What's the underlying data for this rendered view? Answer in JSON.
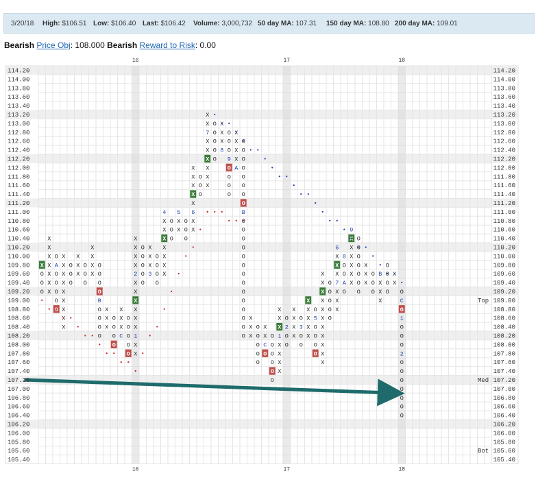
{
  "header": {
    "date": "3/20/18",
    "high_label": "High:",
    "high_value": "$106.51",
    "low_label": "Low:",
    "low_value": "$106.40",
    "last_label": "Last:",
    "last_value": "$106.42",
    "volume_label": "Volume:",
    "volume_value": "3,000,732",
    "ma50_label": "50 day MA:",
    "ma50_value": "107.31",
    "ma150_label": "150 day MA:",
    "ma150_value": "108.80",
    "ma200_label": "200 day MA:",
    "ma200_value": "109.01"
  },
  "signals": {
    "trend1": "Bearish",
    "price_obj_link": "Price Obj",
    "price_obj_value": ": 108.000",
    "trend2": "Bearish",
    "reward_risk_link": "Reward to Risk",
    "reward_risk_value": ": 0.00"
  },
  "colors": {
    "x_text": "#222222",
    "o_text": "#222222",
    "green_box": "#3a7d3a",
    "red_box": "#c0504d",
    "blue_text": "#1f3fa8",
    "red_dot": "#cc2222",
    "trend_arrow": "#1f6b6b",
    "grid_line": "#e6e6e6",
    "band_shade": "#efefef",
    "year_shade": "#d9d9d9"
  },
  "chart_data": {
    "type": "point-and-figure",
    "box_size": 0.2,
    "ylim": [
      105.4,
      114.2
    ],
    "y_ticks": [
      "114.20",
      "114.00",
      "113.80",
      "113.60",
      "113.40",
      "113.20",
      "113.00",
      "112.80",
      "112.60",
      "112.40",
      "112.20",
      "112.00",
      "111.80",
      "111.60",
      "111.40",
      "111.20",
      "111.00",
      "110.80",
      "110.60",
      "110.40",
      "110.20",
      "110.00",
      "109.80",
      "109.60",
      "109.40",
      "109.20",
      "109.00",
      "108.80",
      "108.60",
      "108.40",
      "108.20",
      "108.00",
      "107.80",
      "107.60",
      "107.40",
      "107.20",
      "107.00",
      "106.80",
      "106.60",
      "106.40",
      "106.20",
      "106.00",
      "105.80",
      "105.60",
      "105.40"
    ],
    "year_markers": [
      {
        "label": "16",
        "col": 13
      },
      {
        "label": "17",
        "col": 34
      },
      {
        "label": "18",
        "col": 50
      }
    ],
    "range_labels": [
      {
        "label": "Top",
        "value": 109.0
      },
      {
        "label": "Med",
        "value": 107.2
      },
      {
        "label": "Bot",
        "value": 105.6
      }
    ],
    "columns": [
      {
        "col": 0,
        "type": "O",
        "top": 109.8,
        "bottom": 109.2
      },
      {
        "col": 1,
        "type": "X",
        "top": 110.4,
        "bottom": 109.2
      },
      {
        "col": 2,
        "type": "O",
        "top": 110.0,
        "bottom": 108.8
      },
      {
        "col": 3,
        "type": "X",
        "top": 110.0,
        "bottom": 108.4
      },
      {
        "col": 4,
        "type": "O",
        "top": 109.8,
        "bottom": 109.4
      },
      {
        "col": 5,
        "type": "X",
        "top": 110.0,
        "bottom": 109.6
      },
      {
        "col": 6,
        "type": "O",
        "top": 109.8,
        "bottom": 109.4
      },
      {
        "col": 7,
        "type": "X",
        "top": 110.2,
        "bottom": 109.6
      },
      {
        "col": 8,
        "type": "O",
        "top": 109.8,
        "bottom": 108.2
      },
      {
        "col": 9,
        "type": "X",
        "top": 108.8,
        "bottom": 108.4
      },
      {
        "col": 10,
        "type": "O",
        "top": 108.6,
        "bottom": 108.0
      },
      {
        "col": 11,
        "type": "X",
        "top": 108.8,
        "bottom": 108.2
      },
      {
        "col": 12,
        "type": "O",
        "top": 108.6,
        "bottom": 107.8
      },
      {
        "col": 13,
        "type": "X",
        "top": 110.4,
        "bottom": 107.8
      },
      {
        "col": 14,
        "type": "O",
        "top": 110.2,
        "bottom": 109.4
      },
      {
        "col": 15,
        "type": "X",
        "top": 110.2,
        "bottom": 109.6
      },
      {
        "col": 16,
        "type": "O",
        "top": 110.0,
        "bottom": 109.4
      },
      {
        "col": 17,
        "type": "X",
        "top": 111.0,
        "bottom": 109.6
      },
      {
        "col": 18,
        "type": "O",
        "top": 110.8,
        "bottom": 110.4
      },
      {
        "col": 19,
        "type": "X",
        "top": 111.0,
        "bottom": 110.6
      },
      {
        "col": 20,
        "type": "O",
        "top": 110.8,
        "bottom": 110.4
      },
      {
        "col": 21,
        "type": "X",
        "top": 112.0,
        "bottom": 110.6
      },
      {
        "col": 22,
        "type": "O",
        "top": 111.8,
        "bottom": 111.4
      },
      {
        "col": 23,
        "type": "X",
        "top": 113.2,
        "bottom": 111.6
      },
      {
        "col": 24,
        "type": "O",
        "top": 113.0,
        "bottom": 112.2
      },
      {
        "col": 25,
        "type": "X",
        "top": 113.0,
        "bottom": 112.4
      },
      {
        "col": 26,
        "type": "O",
        "top": 112.8,
        "bottom": 111.4
      },
      {
        "col": 27,
        "type": "X",
        "top": 112.8,
        "bottom": 112.0
      },
      {
        "col": 28,
        "type": "O",
        "top": 112.6,
        "bottom": 108.2
      },
      {
        "col": 29,
        "type": "X",
        "top": 108.6,
        "bottom": 108.2
      },
      {
        "col": 30,
        "type": "O",
        "top": 108.4,
        "bottom": 107.6
      },
      {
        "col": 31,
        "type": "X",
        "top": 108.4,
        "bottom": 107.8
      },
      {
        "col": 32,
        "type": "O",
        "top": 108.2,
        "bottom": 107.2
      },
      {
        "col": 33,
        "type": "X",
        "top": 108.8,
        "bottom": 107.4
      },
      {
        "col": 34,
        "type": "O",
        "top": 108.6,
        "bottom": 108.0
      },
      {
        "col": 35,
        "type": "X",
        "top": 108.8,
        "bottom": 108.2
      },
      {
        "col": 36,
        "type": "O",
        "top": 108.6,
        "bottom": 108.0
      },
      {
        "col": 37,
        "type": "X",
        "top": 109.0,
        "bottom": 108.2
      },
      {
        "col": 38,
        "type": "O",
        "top": 108.8,
        "bottom": 107.8
      },
      {
        "col": 39,
        "type": "X",
        "top": 109.6,
        "bottom": 107.6
      },
      {
        "col": 40,
        "type": "O",
        "top": 109.4,
        "bottom": 108.6
      },
      {
        "col": 41,
        "type": "X",
        "top": 110.2,
        "bottom": 108.8
      },
      {
        "col": 42,
        "type": "O",
        "top": 110.0,
        "bottom": 109.2
      },
      {
        "col": 43,
        "type": "X",
        "top": 110.6,
        "bottom": 109.4
      },
      {
        "col": 44,
        "type": "O",
        "top": 110.4,
        "bottom": 109.2
      },
      {
        "col": 45,
        "type": "X",
        "top": 109.8,
        "bottom": 109.4
      },
      {
        "col": 46,
        "type": "O",
        "top": 109.6,
        "bottom": 109.2
      },
      {
        "col": 47,
        "type": "X",
        "top": 109.6,
        "bottom": 109.0
      },
      {
        "col": 48,
        "type": "O",
        "top": 109.8,
        "bottom": 109.2
      },
      {
        "col": 49,
        "type": "X",
        "top": 109.6,
        "bottom": 109.4
      },
      {
        "col": 50,
        "type": "O",
        "top": 109.2,
        "bottom": 106.4
      }
    ],
    "month_markers": [
      {
        "col": 0,
        "value": 109.8,
        "label": "X",
        "box": "green"
      },
      {
        "col": 2,
        "value": 109.8,
        "label": "A"
      },
      {
        "col": 2,
        "value": 108.8,
        "label": "9",
        "box": "red"
      },
      {
        "col": 8,
        "value": 109.2,
        "label": "O",
        "box": "red"
      },
      {
        "col": 8,
        "value": 109.0,
        "label": "B"
      },
      {
        "col": 10,
        "value": 108.0,
        "label": "O",
        "box": "red"
      },
      {
        "col": 11,
        "value": 108.2,
        "label": "C"
      },
      {
        "col": 12,
        "value": 107.8,
        "label": "O",
        "box": "red"
      },
      {
        "col": 13,
        "value": 109.0,
        "label": "X",
        "box": "green"
      },
      {
        "col": 13,
        "value": 109.6,
        "label": "2"
      },
      {
        "col": 13,
        "value": 108.2,
        "label": "1"
      },
      {
        "col": 15,
        "value": 109.6,
        "label": "3"
      },
      {
        "col": 17,
        "value": 110.4,
        "label": "X",
        "box": "green"
      },
      {
        "col": 17,
        "value": 111.0,
        "label": "4"
      },
      {
        "col": 19,
        "value": 111.0,
        "label": "5"
      },
      {
        "col": 19,
        "value": 111.2,
        "label": "X",
        "box": "green"
      },
      {
        "col": 21,
        "value": 111.0,
        "label": "6"
      },
      {
        "col": 21,
        "value": 111.4,
        "label": "X",
        "box": "green"
      },
      {
        "col": 23,
        "value": 112.2,
        "label": "X",
        "box": "green"
      },
      {
        "col": 23,
        "value": 112.8,
        "label": "7"
      },
      {
        "col": 25,
        "value": 112.4,
        "label": "8"
      },
      {
        "col": 26,
        "value": 112.0,
        "label": "O",
        "box": "red"
      },
      {
        "col": 26,
        "value": 112.2,
        "label": "9"
      },
      {
        "col": 27,
        "value": 112.0,
        "label": "A"
      },
      {
        "col": 28,
        "value": 111.2,
        "label": "O",
        "box": "red"
      },
      {
        "col": 28,
        "value": 111.0,
        "label": "B"
      },
      {
        "col": 31,
        "value": 108.0,
        "label": "C"
      },
      {
        "col": 31,
        "value": 107.8,
        "label": "O",
        "box": "red"
      },
      {
        "col": 32,
        "value": 107.4,
        "label": "O",
        "box": "red"
      },
      {
        "col": 33,
        "value": 108.4,
        "label": "X",
        "box": "green"
      },
      {
        "col": 33,
        "value": 108.2,
        "label": "1"
      },
      {
        "col": 34,
        "value": 108.4,
        "label": "2"
      },
      {
        "col": 36,
        "value": 108.4,
        "label": "3"
      },
      {
        "col": 36,
        "value": 108.8,
        "label": "4"
      },
      {
        "col": 37,
        "value": 109.0,
        "label": "X",
        "box": "green"
      },
      {
        "col": 38,
        "value": 107.8,
        "label": "O",
        "box": "red"
      },
      {
        "col": 38,
        "value": 108.6,
        "label": "5"
      },
      {
        "col": 39,
        "value": 109.2,
        "label": "X",
        "box": "green"
      },
      {
        "col": 41,
        "value": 110.2,
        "label": "6"
      },
      {
        "col": 41,
        "value": 109.8,
        "label": "X",
        "box": "green"
      },
      {
        "col": 41,
        "value": 109.4,
        "label": "7"
      },
      {
        "col": 42,
        "value": 109.4,
        "label": "A"
      },
      {
        "col": 42,
        "value": 110.0,
        "label": "8"
      },
      {
        "col": 43,
        "value": 110.6,
        "label": "9"
      },
      {
        "col": 43,
        "value": 110.4,
        "label": "X",
        "box": "green"
      },
      {
        "col": 47,
        "value": 109.6,
        "label": "B"
      },
      {
        "col": 46,
        "value": 109.0,
        "label": "O",
        "box": "red"
      },
      {
        "col": 50,
        "value": 109.0,
        "label": "C"
      },
      {
        "col": 50,
        "value": 108.8,
        "label": "O",
        "box": "red"
      },
      {
        "col": 50,
        "value": 108.6,
        "label": "1"
      },
      {
        "col": 50,
        "value": 107.8,
        "label": "2"
      }
    ],
    "trendlines": [
      {
        "type": "support",
        "color": "red",
        "points": [
          [
            0,
            109.0
          ],
          [
            13,
            107.4
          ],
          [
            23,
            111.0
          ],
          [
            28,
            110.8
          ]
        ]
      },
      {
        "type": "resistance",
        "color": "blue",
        "points": [
          [
            24,
            113.2
          ],
          [
            50,
            109.4
          ]
        ]
      }
    ],
    "annotation_arrow": {
      "from": [
        -1,
        107.2
      ],
      "to": [
        49,
        106.9
      ]
    }
  }
}
